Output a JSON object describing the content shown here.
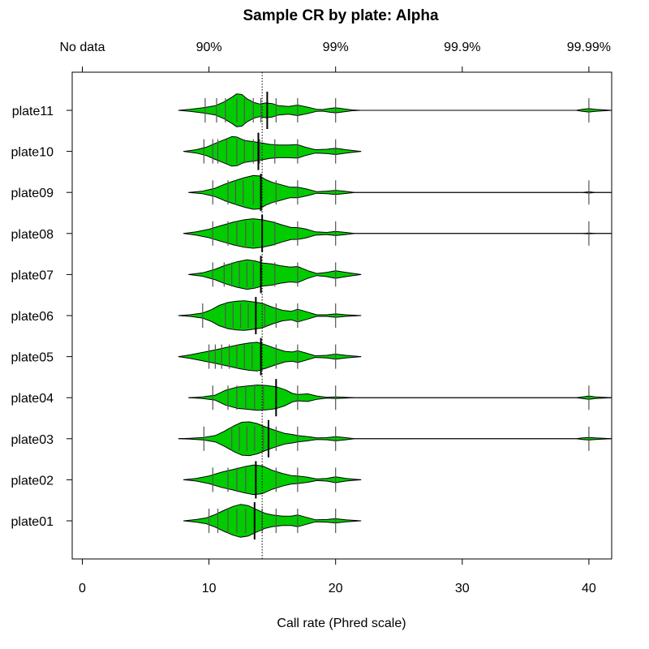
{
  "chart_data": {
    "type": "violin",
    "title": "Sample CR by plate:  Alpha",
    "xlabel": "Call rate (Phred scale)",
    "xlim": [
      -0.8,
      41.8
    ],
    "bottom_ticks": [
      {
        "value": 0,
        "label": "0"
      },
      {
        "value": 10,
        "label": "10"
      },
      {
        "value": 20,
        "label": "20"
      },
      {
        "value": 30,
        "label": "30"
      },
      {
        "value": 40,
        "label": "40"
      }
    ],
    "top_ticks": [
      {
        "value": 0,
        "label": "No data"
      },
      {
        "value": 10,
        "label": "90%"
      },
      {
        "value": 20,
        "label": "99%"
      },
      {
        "value": 30,
        "label": "99.9%"
      },
      {
        "value": 40,
        "label": "99.99%"
      }
    ],
    "reference_line": 14.2,
    "fill_color": "#00cc00",
    "grid": false,
    "legend": "none",
    "plates": [
      {
        "name": "plate11",
        "range": [
          7.6,
          41.8
        ],
        "median": 14.6,
        "rug": [
          9.7,
          10.6,
          11.3,
          12.2,
          12.8,
          13.5,
          14.1,
          14.6,
          15.3,
          17,
          20,
          40
        ],
        "profile": [
          [
            7.6,
            0
          ],
          [
            8.5,
            0.05
          ],
          [
            9.5,
            0.12
          ],
          [
            10.5,
            0.22
          ],
          [
            11.2,
            0.4
          ],
          [
            11.8,
            0.62
          ],
          [
            12.2,
            0.78
          ],
          [
            12.6,
            0.75
          ],
          [
            13.0,
            0.55
          ],
          [
            13.5,
            0.38
          ],
          [
            14.0,
            0.3
          ],
          [
            14.5,
            0.35
          ],
          [
            15.0,
            0.32
          ],
          [
            15.5,
            0.22
          ],
          [
            16.3,
            0.18
          ],
          [
            17.0,
            0.25
          ],
          [
            17.8,
            0.15
          ],
          [
            18.5,
            0.05
          ],
          [
            19.0,
            0.04
          ],
          [
            19.5,
            0.09
          ],
          [
            20.0,
            0.12
          ],
          [
            20.5,
            0.08
          ],
          [
            21.3,
            0.02
          ],
          [
            22.0,
            0
          ],
          [
            39,
            0
          ],
          [
            39.5,
            0.05
          ],
          [
            40,
            0.08
          ],
          [
            40.5,
            0.05
          ],
          [
            41.8,
            0
          ]
        ]
      },
      {
        "name": "plate10",
        "range": [
          8.0,
          22.0
        ],
        "median": 13.9,
        "rug": [
          9.6,
          10.3,
          10.7,
          11.4,
          12.2,
          12.8,
          13.5,
          14.0,
          15.2,
          17,
          20
        ],
        "profile": [
          [
            8.0,
            0
          ],
          [
            9.0,
            0.08
          ],
          [
            9.8,
            0.2
          ],
          [
            10.5,
            0.38
          ],
          [
            11.2,
            0.55
          ],
          [
            11.8,
            0.7
          ],
          [
            12.2,
            0.68
          ],
          [
            12.8,
            0.52
          ],
          [
            13.5,
            0.46
          ],
          [
            14.2,
            0.4
          ],
          [
            14.8,
            0.33
          ],
          [
            15.5,
            0.3
          ],
          [
            16.3,
            0.3
          ],
          [
            17.0,
            0.32
          ],
          [
            17.6,
            0.2
          ],
          [
            18.4,
            0.08
          ],
          [
            19.3,
            0.1
          ],
          [
            20.0,
            0.15
          ],
          [
            20.8,
            0.08
          ],
          [
            22.0,
            0
          ]
        ]
      },
      {
        "name": "plate09",
        "range": [
          8.4,
          41.8
        ],
        "median": 14.1,
        "rug": [
          10.3,
          11.5,
          12.1,
          12.7,
          13.5,
          14.1,
          15.3,
          17,
          20,
          40
        ],
        "profile": [
          [
            8.4,
            0
          ],
          [
            9.5,
            0.06
          ],
          [
            10.5,
            0.2
          ],
          [
            11.2,
            0.38
          ],
          [
            12.0,
            0.55
          ],
          [
            12.8,
            0.7
          ],
          [
            13.5,
            0.8
          ],
          [
            14.0,
            0.78
          ],
          [
            14.5,
            0.6
          ],
          [
            15.0,
            0.48
          ],
          [
            15.6,
            0.38
          ],
          [
            16.4,
            0.25
          ],
          [
            17.0,
            0.25
          ],
          [
            17.8,
            0.15
          ],
          [
            18.5,
            0.04
          ],
          [
            19.3,
            0.06
          ],
          [
            20.0,
            0.1
          ],
          [
            20.8,
            0.05
          ],
          [
            21.5,
            0
          ],
          [
            39.5,
            0
          ],
          [
            40,
            0.03
          ],
          [
            40.5,
            0
          ],
          [
            41.8,
            0
          ]
        ]
      },
      {
        "name": "plate08",
        "range": [
          8.0,
          41.8
        ],
        "median": 14.2,
        "rug": [
          10.3,
          11.5,
          12.2,
          12.9,
          13.5,
          14.2,
          15.2,
          17,
          20,
          40
        ],
        "profile": [
          [
            8.0,
            0
          ],
          [
            9.0,
            0.08
          ],
          [
            10.0,
            0.2
          ],
          [
            11.0,
            0.38
          ],
          [
            12.0,
            0.55
          ],
          [
            12.8,
            0.65
          ],
          [
            13.5,
            0.7
          ],
          [
            14.2,
            0.65
          ],
          [
            15.0,
            0.55
          ],
          [
            15.8,
            0.4
          ],
          [
            16.5,
            0.28
          ],
          [
            17.0,
            0.28
          ],
          [
            17.6,
            0.22
          ],
          [
            18.4,
            0.08
          ],
          [
            19.3,
            0.05
          ],
          [
            20.0,
            0.1
          ],
          [
            20.8,
            0.05
          ],
          [
            21.5,
            0
          ],
          [
            39.5,
            0
          ],
          [
            40,
            0.02
          ],
          [
            40.5,
            0
          ],
          [
            41.8,
            0
          ]
        ]
      },
      {
        "name": "plate07",
        "range": [
          8.4,
          22.0
        ],
        "median": 14.1,
        "rug": [
          10.3,
          11.2,
          11.8,
          12.4,
          13.0,
          13.5,
          14.1,
          15.2,
          17,
          20
        ],
        "profile": [
          [
            8.4,
            0
          ],
          [
            9.5,
            0.08
          ],
          [
            10.5,
            0.25
          ],
          [
            11.2,
            0.42
          ],
          [
            12.2,
            0.6
          ],
          [
            13.0,
            0.7
          ],
          [
            13.6,
            0.65
          ],
          [
            14.2,
            0.55
          ],
          [
            15.0,
            0.5
          ],
          [
            15.6,
            0.42
          ],
          [
            16.4,
            0.35
          ],
          [
            17.0,
            0.38
          ],
          [
            17.8,
            0.18
          ],
          [
            18.5,
            0.05
          ],
          [
            19.3,
            0.1
          ],
          [
            20.0,
            0.18
          ],
          [
            20.8,
            0.1
          ],
          [
            22.0,
            0
          ]
        ]
      },
      {
        "name": "plate06",
        "range": [
          7.6,
          22.0
        ],
        "median": 13.7,
        "rug": [
          9.5,
          11.3,
          11.9,
          12.5,
          13.1,
          13.7,
          14.4,
          15.3,
          17,
          20
        ],
        "profile": [
          [
            7.6,
            0
          ],
          [
            8.5,
            0.04
          ],
          [
            9.5,
            0.12
          ],
          [
            10.2,
            0.28
          ],
          [
            10.8,
            0.48
          ],
          [
            11.5,
            0.62
          ],
          [
            12.2,
            0.68
          ],
          [
            12.8,
            0.7
          ],
          [
            13.5,
            0.65
          ],
          [
            14.2,
            0.58
          ],
          [
            15.0,
            0.4
          ],
          [
            15.8,
            0.25
          ],
          [
            16.5,
            0.2
          ],
          [
            17.0,
            0.3
          ],
          [
            17.6,
            0.2
          ],
          [
            18.5,
            0.04
          ],
          [
            19.3,
            0.04
          ],
          [
            20.0,
            0.08
          ],
          [
            20.8,
            0.04
          ],
          [
            22.0,
            0
          ]
        ]
      },
      {
        "name": "plate05",
        "range": [
          7.6,
          22.0
        ],
        "median": 14.1,
        "rug": [
          10.0,
          10.5,
          11.0,
          11.6,
          12.2,
          12.8,
          13.4,
          14.1,
          15.3,
          17,
          20
        ],
        "profile": [
          [
            7.6,
            0
          ],
          [
            8.5,
            0.08
          ],
          [
            9.5,
            0.2
          ],
          [
            10.5,
            0.32
          ],
          [
            11.5,
            0.45
          ],
          [
            12.5,
            0.58
          ],
          [
            13.2,
            0.65
          ],
          [
            13.8,
            0.68
          ],
          [
            14.5,
            0.55
          ],
          [
            15.2,
            0.4
          ],
          [
            16.0,
            0.25
          ],
          [
            16.6,
            0.22
          ],
          [
            17.0,
            0.28
          ],
          [
            17.6,
            0.18
          ],
          [
            18.4,
            0.04
          ],
          [
            19.3,
            0.06
          ],
          [
            20.0,
            0.12
          ],
          [
            20.8,
            0.06
          ],
          [
            22.0,
            0
          ]
        ]
      },
      {
        "name": "plate04",
        "range": [
          8.4,
          41.8
        ],
        "median": 15.3,
        "rug": [
          10.3,
          11.5,
          12.2,
          12.9,
          13.6,
          14.3,
          15.3,
          17,
          20,
          40
        ],
        "profile": [
          [
            8.4,
            0
          ],
          [
            9.5,
            0.04
          ],
          [
            10.5,
            0.12
          ],
          [
            11.3,
            0.35
          ],
          [
            12.2,
            0.5
          ],
          [
            13.0,
            0.55
          ],
          [
            13.8,
            0.6
          ],
          [
            14.5,
            0.58
          ],
          [
            15.3,
            0.52
          ],
          [
            16.0,
            0.38
          ],
          [
            16.6,
            0.2
          ],
          [
            17.0,
            0.15
          ],
          [
            17.8,
            0.18
          ],
          [
            18.5,
            0.08
          ],
          [
            19.3,
            0.02
          ],
          [
            20.0,
            0.04
          ],
          [
            20.8,
            0.02
          ],
          [
            21.5,
            0
          ],
          [
            39,
            0
          ],
          [
            39.5,
            0.04
          ],
          [
            40,
            0.08
          ],
          [
            40.5,
            0.04
          ],
          [
            41.8,
            0
          ]
        ]
      },
      {
        "name": "plate03",
        "range": [
          7.6,
          41.8
        ],
        "median": 14.7,
        "rug": [
          9.6,
          11.8,
          12.4,
          13.0,
          13.6,
          14.3,
          14.7,
          15.3,
          17,
          20,
          40
        ],
        "profile": [
          [
            7.6,
            0
          ],
          [
            8.5,
            0.02
          ],
          [
            9.6,
            0.06
          ],
          [
            10.5,
            0.15
          ],
          [
            11.2,
            0.35
          ],
          [
            12.0,
            0.62
          ],
          [
            12.6,
            0.78
          ],
          [
            13.2,
            0.8
          ],
          [
            13.8,
            0.72
          ],
          [
            14.5,
            0.55
          ],
          [
            15.2,
            0.4
          ],
          [
            16.0,
            0.25
          ],
          [
            16.6,
            0.2
          ],
          [
            17.0,
            0.15
          ],
          [
            17.8,
            0.1
          ],
          [
            18.5,
            0.04
          ],
          [
            19.3,
            0.05
          ],
          [
            20.0,
            0.1
          ],
          [
            20.8,
            0.05
          ],
          [
            21.5,
            0
          ],
          [
            39,
            0
          ],
          [
            39.5,
            0.04
          ],
          [
            40,
            0.06
          ],
          [
            40.5,
            0.04
          ],
          [
            41.8,
            0
          ]
        ]
      },
      {
        "name": "plate02",
        "range": [
          8.0,
          22.0
        ],
        "median": 13.7,
        "rug": [
          10.3,
          11.5,
          12.2,
          12.9,
          13.7,
          15.3,
          17,
          20
        ],
        "profile": [
          [
            8.0,
            0
          ],
          [
            9.0,
            0.06
          ],
          [
            10.0,
            0.18
          ],
          [
            11.0,
            0.36
          ],
          [
            12.0,
            0.5
          ],
          [
            12.8,
            0.62
          ],
          [
            13.5,
            0.7
          ],
          [
            14.2,
            0.66
          ],
          [
            15.0,
            0.45
          ],
          [
            15.8,
            0.3
          ],
          [
            16.5,
            0.2
          ],
          [
            17.0,
            0.18
          ],
          [
            17.8,
            0.12
          ],
          [
            18.5,
            0.04
          ],
          [
            19.3,
            0.06
          ],
          [
            20.0,
            0.14
          ],
          [
            20.8,
            0.06
          ],
          [
            22.0,
            0
          ]
        ]
      },
      {
        "name": "plate01",
        "range": [
          8.0,
          22.0
        ],
        "median": 13.6,
        "rug": [
          10.0,
          10.7,
          11.5,
          12.2,
          12.9,
          13.6,
          14.2,
          15.3,
          17,
          20
        ],
        "profile": [
          [
            8.0,
            0
          ],
          [
            9.0,
            0.06
          ],
          [
            9.8,
            0.14
          ],
          [
            10.5,
            0.3
          ],
          [
            11.2,
            0.5
          ],
          [
            11.9,
            0.68
          ],
          [
            12.5,
            0.78
          ],
          [
            13.1,
            0.72
          ],
          [
            13.7,
            0.55
          ],
          [
            14.4,
            0.36
          ],
          [
            15.0,
            0.28
          ],
          [
            15.8,
            0.22
          ],
          [
            16.5,
            0.22
          ],
          [
            17.0,
            0.28
          ],
          [
            17.6,
            0.18
          ],
          [
            18.4,
            0.05
          ],
          [
            19.3,
            0.06
          ],
          [
            20.0,
            0.1
          ],
          [
            20.8,
            0.05
          ],
          [
            22.0,
            0
          ]
        ]
      }
    ]
  }
}
